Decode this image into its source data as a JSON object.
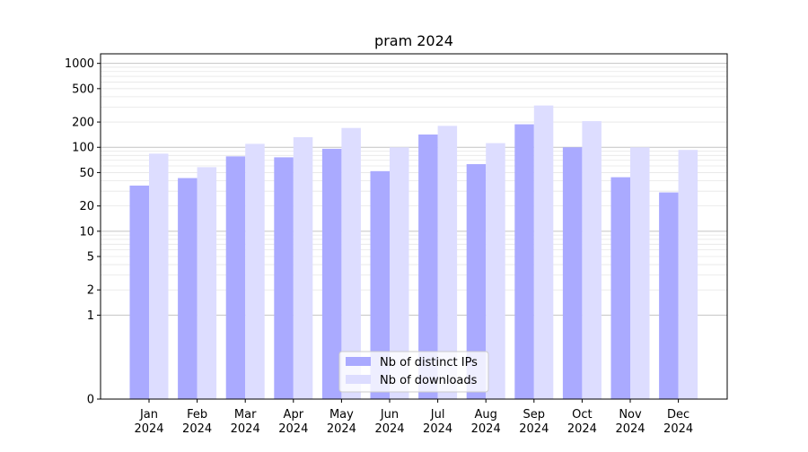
{
  "chart_data": {
    "type": "bar",
    "title": "pram 2024",
    "xlabel": "",
    "ylabel": "",
    "yscale": "symlog",
    "ylim": [
      0,
      1300
    ],
    "yticks": [
      0,
      1,
      2,
      5,
      10,
      20,
      50,
      100,
      200,
      500,
      1000
    ],
    "ytick_labels": [
      "0",
      "1",
      "2",
      "5",
      "10",
      "20",
      "50",
      "100",
      "200",
      "500",
      "1000"
    ],
    "categories": [
      "Jan 2024",
      "Feb 2024",
      "Mar 2024",
      "Apr 2024",
      "May 2024",
      "Jun 2024",
      "Jul 2024",
      "Aug 2024",
      "Sep 2024",
      "Oct 2024",
      "Nov 2024",
      "Dec 2024"
    ],
    "category_lines": [
      [
        "Jan",
        "2024"
      ],
      [
        "Feb",
        "2024"
      ],
      [
        "Mar",
        "2024"
      ],
      [
        "Apr",
        "2024"
      ],
      [
        "May",
        "2024"
      ],
      [
        "Jun",
        "2024"
      ],
      [
        "Jul",
        "2024"
      ],
      [
        "Aug",
        "2024"
      ],
      [
        "Sep",
        "2024"
      ],
      [
        "Oct",
        "2024"
      ],
      [
        "Nov",
        "2024"
      ],
      [
        "Dec",
        "2024"
      ]
    ],
    "series": [
      {
        "name": "Nb of distinct IPs",
        "color": "#aaaaff",
        "values": [
          35,
          43,
          78,
          76,
          96,
          52,
          142,
          63,
          188,
          100,
          44,
          29
        ]
      },
      {
        "name": "Nb of downloads",
        "color": "#ddddff",
        "values": [
          84,
          58,
          110,
          132,
          170,
          100,
          180,
          112,
          315,
          205,
          100,
          93
        ]
      }
    ],
    "grid": true,
    "legend_position": "bottom-center"
  }
}
